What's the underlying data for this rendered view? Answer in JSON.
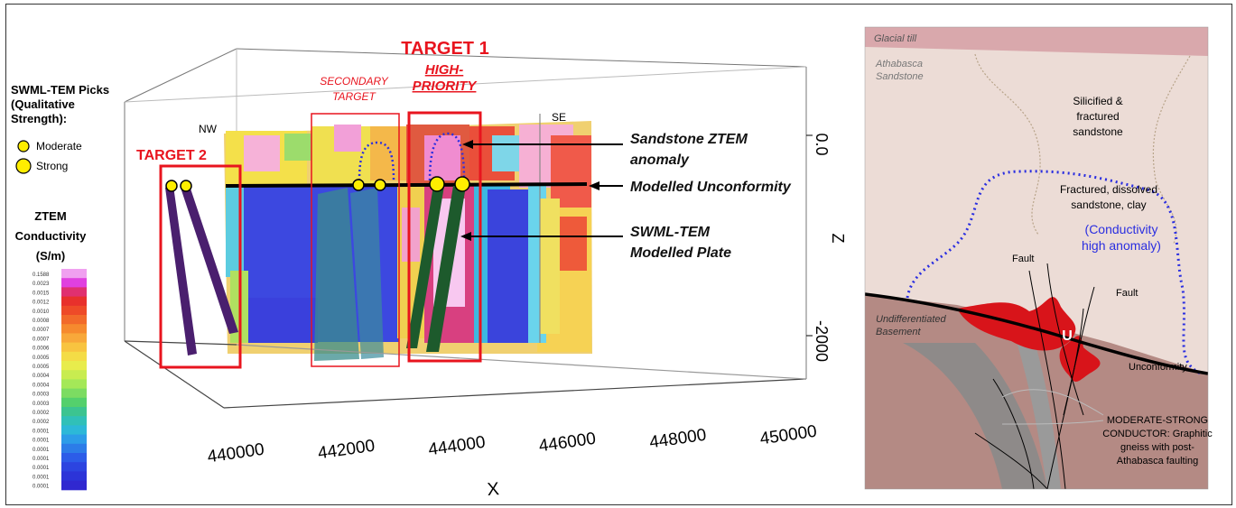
{
  "legend": {
    "picks_title": [
      "SWML-TEM Picks",
      "(Qualitative",
      "Strength):"
    ],
    "moderate_label": "Moderate",
    "strong_label": "Strong",
    "colorbar_title": [
      "ZTEM",
      "Conductivity",
      "(S/m)"
    ],
    "colorbar_ticks": [
      "0.1588",
      "0.0023",
      "0.0015",
      "0.0012",
      "0.0010",
      "0.0008",
      "0.0007",
      "0.0007",
      "0.0006",
      "0.0005",
      "0.0005",
      "0.0004",
      "0.0004",
      "0.0003",
      "0.0003",
      "0.0002",
      "0.0002",
      "0.0001",
      "0.0001",
      "0.0001",
      "0.0001",
      "0.0001",
      "0.0001",
      "0.0001"
    ],
    "colorbar_colors": [
      "#f0a0f0",
      "#e040e0",
      "#e03070",
      "#e8302c",
      "#ee4a28",
      "#f26a2a",
      "#f68a2e",
      "#f8a83a",
      "#f8c440",
      "#f4dc46",
      "#e8ec4c",
      "#c8ec50",
      "#a4e858",
      "#7cdc62",
      "#54d06c",
      "#3cc490",
      "#30c0b8",
      "#2cb8d8",
      "#2c9ce8",
      "#2c7ce8",
      "#2c5ce8",
      "#2c44e0",
      "#2c34d8",
      "#3028d0"
    ]
  },
  "scene": {
    "target1_title": "TARGET 1",
    "target1_subtitle": [
      "HIGH-",
      "PRIORITY"
    ],
    "secondary_target": [
      "SECONDARY",
      "TARGET"
    ],
    "target2_title": "TARGET 2",
    "nw_label": "NW",
    "se_label": "SE",
    "callout_sandstone": [
      "Sandstone ZTEM",
      "anomaly"
    ],
    "callout_unconformity": "Modelled Unconformity",
    "callout_plate": [
      "SWML-TEM",
      "Modelled Plate"
    ],
    "x_ticks": [
      "440000",
      "442000",
      "444000",
      "446000",
      "448000",
      "450000"
    ],
    "x_axis_label": "X",
    "z_axis_label": "Z",
    "z_ticks": [
      "0.0",
      "-2000"
    ],
    "colors": {
      "target_red": "#e8141e",
      "picks_yellow": "#ffee00",
      "plate_purple": "#4a1f6e",
      "plate_green": "#1d5a2c"
    }
  },
  "section": {
    "glacial_till": "Glacial till",
    "athabasca": [
      "Athabasca",
      "Sandstone"
    ],
    "silicified": [
      "Silicified &",
      "fractured",
      "sandstone"
    ],
    "fractured_dissolved": [
      "Fractured, dissolved",
      "sandstone, clay"
    ],
    "conductivity_anomaly": [
      "(Conductivity",
      "high anomaly)"
    ],
    "fault_1": "Fault",
    "fault_2": "Fault",
    "basement": [
      "Undifferentiated",
      "Basement"
    ],
    "u_label": "U",
    "unconformity": "Unconformity",
    "conductor": [
      "MODERATE-STRONG",
      "CONDUCTOR: Graphitic",
      "gneiss with post-",
      "Athabasca faulting"
    ],
    "colors": {
      "till": "#d9a8ac",
      "sandstone": "#ecdcd6",
      "basement": "#b48a84",
      "anomaly_blue": "#2a2ee0",
      "ore_red": "#d8141a"
    }
  }
}
